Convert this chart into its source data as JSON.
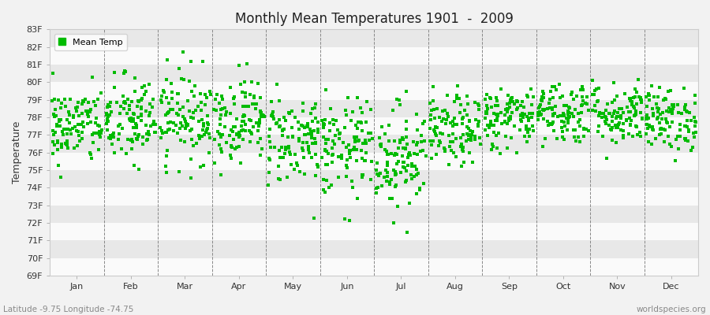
{
  "title": "Monthly Mean Temperatures 1901  -  2009",
  "ylabel": "Temperature",
  "xlabel_bottom_left": "Latitude -9.75 Longitude -74.75",
  "xlabel_bottom_right": "worldspecies.org",
  "ylim": [
    69,
    83
  ],
  "ytick_labels": [
    "69F",
    "70F",
    "71F",
    "72F",
    "73F",
    "74F",
    "75F",
    "76F",
    "77F",
    "78F",
    "79F",
    "80F",
    "81F",
    "82F",
    "83F"
  ],
  "months": [
    "Jan",
    "Feb",
    "Mar",
    "Apr",
    "May",
    "Jun",
    "Jul",
    "Aug",
    "Sep",
    "Oct",
    "Nov",
    "Dec"
  ],
  "marker_color": "#00BB00",
  "background_color": "#F2F2F2",
  "band_color_light": "#FAFAFA",
  "band_color_dark": "#E8E8E8",
  "legend_label": "Mean Temp",
  "seed": 42,
  "n_years": 109,
  "month_means": [
    77.5,
    77.8,
    78.1,
    77.9,
    76.8,
    76.2,
    75.8,
    77.2,
    78.0,
    78.3,
    78.2,
    77.9
  ],
  "month_stds": [
    1.1,
    1.3,
    1.3,
    1.2,
    1.3,
    1.4,
    1.5,
    1.0,
    0.9,
    0.9,
    0.9,
    0.9
  ]
}
